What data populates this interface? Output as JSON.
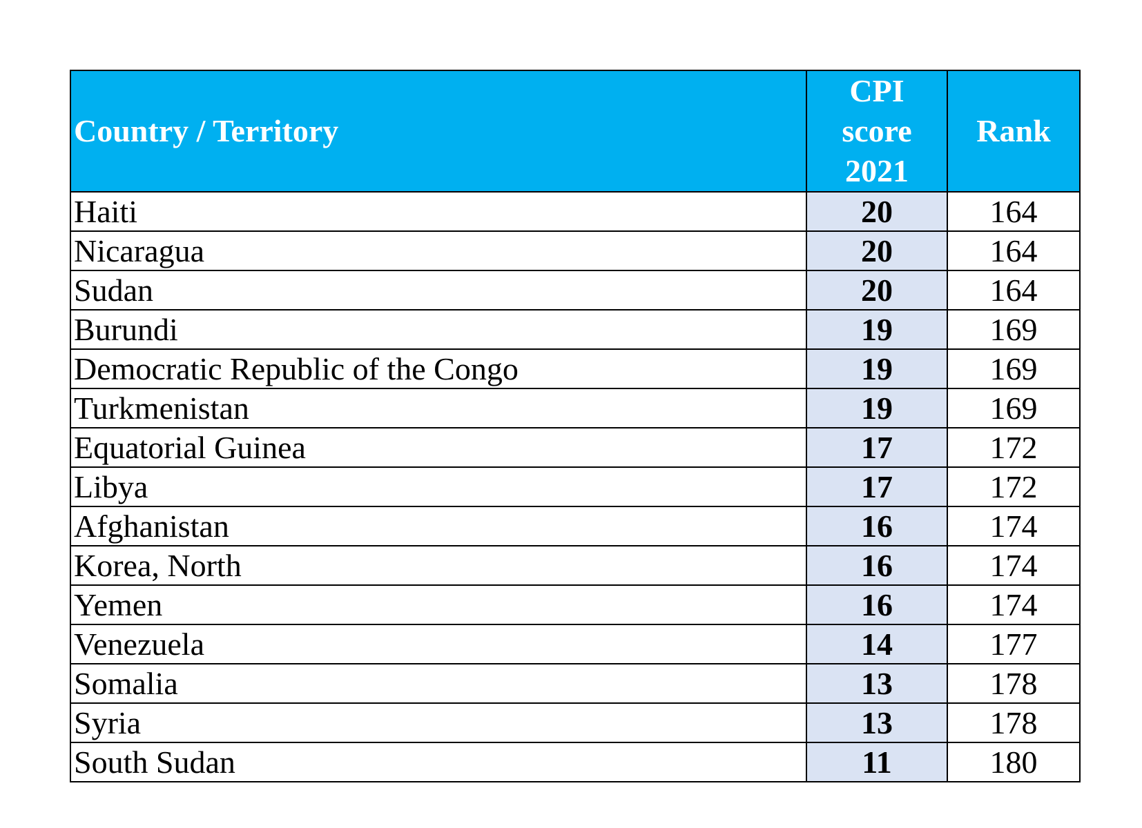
{
  "header": {
    "country": "Country / Territory",
    "score_lines": [
      "CPI",
      "score",
      "2021"
    ],
    "rank": "Rank"
  },
  "rows": [
    {
      "country": "Haiti",
      "score": "20",
      "rank": "164"
    },
    {
      "country": "Nicaragua",
      "score": "20",
      "rank": "164"
    },
    {
      "country": "Sudan",
      "score": "20",
      "rank": "164"
    },
    {
      "country": "Burundi",
      "score": "19",
      "rank": "169"
    },
    {
      "country": "Democratic Republic of the Congo",
      "score": "19",
      "rank": "169"
    },
    {
      "country": "Turkmenistan",
      "score": "19",
      "rank": "169"
    },
    {
      "country": "Equatorial Guinea",
      "score": "17",
      "rank": "172"
    },
    {
      "country": "Libya",
      "score": "17",
      "rank": "172"
    },
    {
      "country": "Afghanistan",
      "score": "16",
      "rank": "174"
    },
    {
      "country": "Korea, North",
      "score": "16",
      "rank": "174"
    },
    {
      "country": "Yemen",
      "score": "16",
      "rank": "174"
    },
    {
      "country": "Venezuela",
      "score": "14",
      "rank": "177"
    },
    {
      "country": "Somalia",
      "score": "13",
      "rank": "178"
    },
    {
      "country": "Syria",
      "score": "13",
      "rank": "178"
    },
    {
      "country": "South Sudan",
      "score": "11",
      "rank": "180"
    }
  ],
  "colors": {
    "header_bg": "#00b0f0",
    "header_text": "#ffffff",
    "score_bg": "#dae3f3",
    "border": "#000000"
  }
}
